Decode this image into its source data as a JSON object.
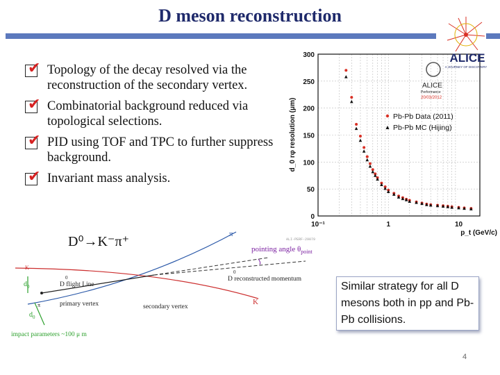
{
  "slide": {
    "title": "D meson reconstruction",
    "page_number": "4",
    "callout": "Similar strategy for all D mesons both in pp and Pb-Pb collisions.",
    "reaction": "D⁰→K⁻π⁺",
    "bullets": [
      {
        "text": "Topology of the decay resolved via the reconstruction of the secondary vertex."
      },
      {
        "text": "Combinatorial background reduced via topological selections."
      },
      {
        "text": "PID using TOF and TPC to further suppress background."
      },
      {
        "text": "Invariant mass analysis."
      }
    ]
  },
  "diagram": {
    "labels": {
      "pi": "π",
      "K_top": "K",
      "K_bottom": "K",
      "pi_small": "π",
      "pointing_angle": "pointing angle θ",
      "pointing_sub": "point",
      "flight_line": "D flight Line",
      "flight_sup": "0",
      "reco_momentum": "D reconstructed momentum",
      "reco_sup": "0",
      "primary_vertex": "primary vertex",
      "secondary_vertex": "secondary vertex",
      "d0_top": "d",
      "d0_top_sub": "0",
      "d0_top_sup": "K",
      "d0_bottom": "d",
      "d0_bottom_sub": "0",
      "d0_bottom_sup": "π",
      "impact": "impact parameters ~100 μ m",
      "watermark": "ALI-PERF-29079"
    }
  },
  "logo": {
    "text": "ALICE",
    "subtitle": "A JOURNEY OF DISCOVERY",
    "small_text": "ALICE",
    "small_sub": "Performance",
    "small_date": "20/03/2012"
  },
  "chart_data": {
    "type": "scatter",
    "title": "",
    "xlabel": "p_t (GeV/c)",
    "ylabel": "d_0 rφ resolution (μm)",
    "xscale": "log",
    "xlim": [
      0.1,
      20
    ],
    "ylim": [
      0,
      300
    ],
    "x_tick_labels": [
      "10⁻¹",
      "1",
      "10"
    ],
    "y_tick_labels": [
      "0",
      "50",
      "100",
      "150",
      "200",
      "250",
      "300"
    ],
    "grid": true,
    "legend_position": "right",
    "series": [
      {
        "name": "Pb-Pb Data (2011)",
        "marker": "circle",
        "color": "#d93025",
        "x": [
          0.25,
          0.3,
          0.35,
          0.4,
          0.45,
          0.5,
          0.55,
          0.6,
          0.65,
          0.7,
          0.8,
          0.9,
          1.0,
          1.2,
          1.4,
          1.6,
          1.8,
          2.0,
          2.5,
          3.0,
          3.5,
          4.0,
          5.0,
          6.0,
          7.0,
          8.0,
          10.0,
          12.0,
          15.0
        ],
        "y": [
          270,
          220,
          170,
          148,
          127,
          110,
          97,
          86,
          78,
          71,
          61,
          54,
          48,
          42,
          37,
          34,
          31,
          29,
          26,
          24,
          22,
          21,
          20,
          19,
          18,
          17,
          16,
          15,
          14
        ]
      },
      {
        "name": "Pb-Pb MC (Hijing)",
        "marker": "triangle",
        "color": "#111111",
        "x": [
          0.25,
          0.3,
          0.35,
          0.4,
          0.45,
          0.5,
          0.55,
          0.6,
          0.65,
          0.7,
          0.8,
          0.9,
          1.0,
          1.2,
          1.4,
          1.6,
          1.8,
          2.0,
          2.5,
          3.0,
          3.5,
          4.0,
          5.0,
          6.0,
          7.0,
          8.0,
          10.0,
          12.0,
          15.0
        ],
        "y": [
          258,
          212,
          162,
          140,
          120,
          104,
          92,
          82,
          75,
          68,
          58,
          51,
          45,
          40,
          35,
          32,
          30,
          27,
          25,
          23,
          21,
          20,
          19,
          18,
          17,
          16,
          15,
          14,
          13
        ]
      }
    ]
  }
}
